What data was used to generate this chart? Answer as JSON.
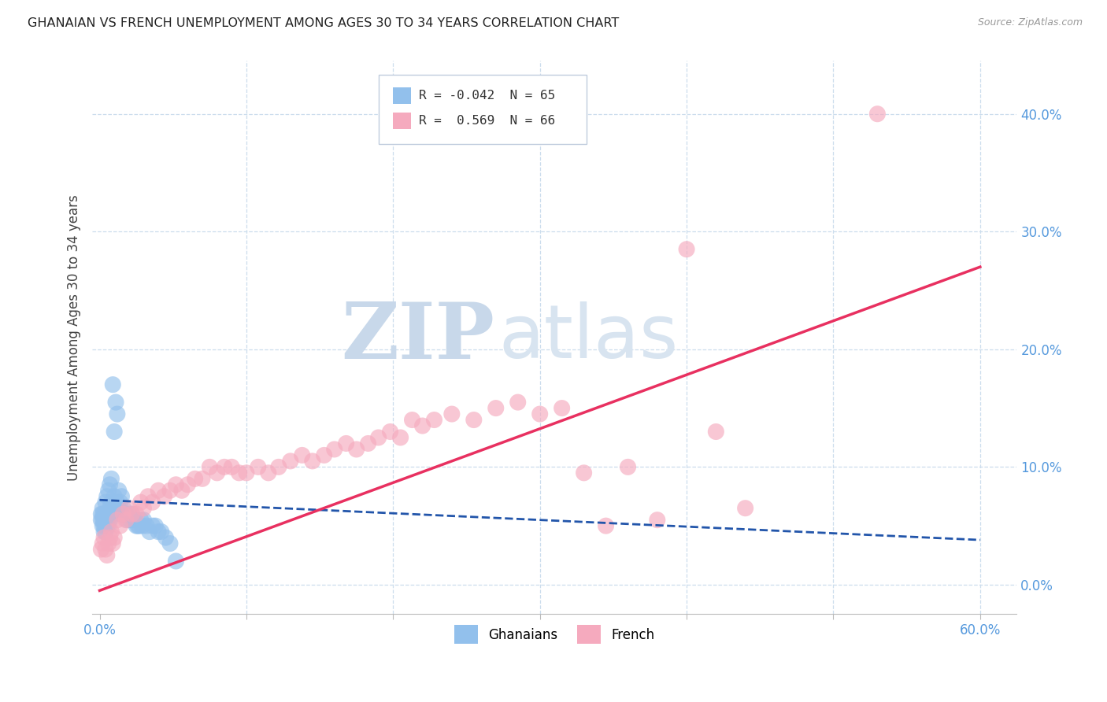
{
  "title": "GHANAIAN VS FRENCH UNEMPLOYMENT AMONG AGES 30 TO 34 YEARS CORRELATION CHART",
  "source": "Source: ZipAtlas.com",
  "ylabel": "Unemployment Among Ages 30 to 34 years",
  "xlim": [
    -0.005,
    0.625
  ],
  "ylim": [
    -0.025,
    0.445
  ],
  "yticks": [
    0.0,
    0.1,
    0.2,
    0.3,
    0.4
  ],
  "ytick_labels": [
    "0.0%",
    "10.0%",
    "20.0%",
    "30.0%",
    "40.0%"
  ],
  "xticks": [
    0.0,
    0.1,
    0.2,
    0.3,
    0.4,
    0.5,
    0.6
  ],
  "xtick_labels_show": [
    "0.0%",
    "60.0%"
  ],
  "watermark_zip": "ZIP",
  "watermark_atlas": "atlas",
  "blue_color": "#92C0EC",
  "pink_color": "#F5AABE",
  "blue_line_color": "#2255AA",
  "pink_line_color": "#E83060",
  "background_color": "#FFFFFF",
  "grid_color": "#CCDDED",
  "title_fontsize": 11.5,
  "source_fontsize": 9,
  "axis_label_color": "#5599DD",
  "ghanaian_x": [
    0.001,
    0.001,
    0.002,
    0.002,
    0.002,
    0.002,
    0.003,
    0.003,
    0.003,
    0.003,
    0.004,
    0.004,
    0.004,
    0.004,
    0.005,
    0.005,
    0.005,
    0.005,
    0.006,
    0.006,
    0.006,
    0.007,
    0.007,
    0.007,
    0.008,
    0.008,
    0.008,
    0.009,
    0.009,
    0.01,
    0.01,
    0.01,
    0.011,
    0.011,
    0.012,
    0.012,
    0.013,
    0.013,
    0.014,
    0.015,
    0.015,
    0.016,
    0.017,
    0.018,
    0.019,
    0.02,
    0.021,
    0.022,
    0.023,
    0.024,
    0.025,
    0.026,
    0.027,
    0.028,
    0.029,
    0.03,
    0.032,
    0.034,
    0.036,
    0.038,
    0.04,
    0.042,
    0.045,
    0.048,
    0.052
  ],
  "ghanaian_y": [
    0.055,
    0.06,
    0.05,
    0.055,
    0.06,
    0.065,
    0.045,
    0.05,
    0.055,
    0.06,
    0.045,
    0.05,
    0.055,
    0.07,
    0.05,
    0.055,
    0.06,
    0.075,
    0.05,
    0.06,
    0.08,
    0.055,
    0.065,
    0.085,
    0.06,
    0.07,
    0.09,
    0.065,
    0.17,
    0.06,
    0.075,
    0.13,
    0.065,
    0.155,
    0.07,
    0.145,
    0.065,
    0.08,
    0.07,
    0.06,
    0.075,
    0.065,
    0.06,
    0.06,
    0.055,
    0.06,
    0.055,
    0.06,
    0.055,
    0.055,
    0.05,
    0.05,
    0.05,
    0.055,
    0.05,
    0.055,
    0.05,
    0.045,
    0.05,
    0.05,
    0.045,
    0.045,
    0.04,
    0.035,
    0.02
  ],
  "french_x": [
    0.001,
    0.002,
    0.003,
    0.004,
    0.005,
    0.006,
    0.007,
    0.008,
    0.009,
    0.01,
    0.012,
    0.014,
    0.016,
    0.018,
    0.02,
    0.022,
    0.025,
    0.028,
    0.03,
    0.033,
    0.036,
    0.04,
    0.044,
    0.048,
    0.052,
    0.056,
    0.06,
    0.065,
    0.07,
    0.075,
    0.08,
    0.085,
    0.09,
    0.095,
    0.1,
    0.108,
    0.115,
    0.122,
    0.13,
    0.138,
    0.145,
    0.153,
    0.16,
    0.168,
    0.175,
    0.183,
    0.19,
    0.198,
    0.205,
    0.213,
    0.22,
    0.228,
    0.24,
    0.255,
    0.27,
    0.285,
    0.3,
    0.315,
    0.33,
    0.345,
    0.36,
    0.38,
    0.4,
    0.42,
    0.44,
    0.53
  ],
  "french_y": [
    0.03,
    0.035,
    0.04,
    0.03,
    0.025,
    0.035,
    0.04,
    0.045,
    0.035,
    0.04,
    0.055,
    0.05,
    0.06,
    0.055,
    0.065,
    0.06,
    0.06,
    0.07,
    0.065,
    0.075,
    0.07,
    0.08,
    0.075,
    0.08,
    0.085,
    0.08,
    0.085,
    0.09,
    0.09,
    0.1,
    0.095,
    0.1,
    0.1,
    0.095,
    0.095,
    0.1,
    0.095,
    0.1,
    0.105,
    0.11,
    0.105,
    0.11,
    0.115,
    0.12,
    0.115,
    0.12,
    0.125,
    0.13,
    0.125,
    0.14,
    0.135,
    0.14,
    0.145,
    0.14,
    0.15,
    0.155,
    0.145,
    0.15,
    0.095,
    0.05,
    0.1,
    0.055,
    0.285,
    0.13,
    0.065,
    0.4
  ],
  "blue_trend_x": [
    0.0,
    0.6
  ],
  "blue_trend_y": [
    0.072,
    0.038
  ],
  "pink_trend_x": [
    0.0,
    0.6
  ],
  "pink_trend_y": [
    -0.005,
    0.27
  ]
}
